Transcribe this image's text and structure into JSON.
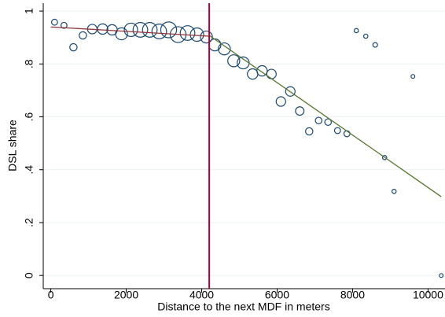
{
  "chart_data": {
    "type": "scatter",
    "x_label": "Distance to the next MDF in meters",
    "y_label": "DSL share",
    "xlim": [
      -200,
      10450
    ],
    "ylim": [
      -0.05,
      1.03
    ],
    "xticks": [
      0,
      2000,
      4000,
      6000,
      8000,
      10000
    ],
    "yticks": [
      0,
      {
        "value": 0.2,
        "label": ".2"
      },
      {
        "value": 0.4,
        "label": ".4"
      },
      {
        "value": 0.6,
        "label": ".6"
      },
      {
        "value": 0.8,
        "label": ".8"
      },
      1
    ],
    "grid": true,
    "series": [
      {
        "color": "#1a476f",
        "x": [
          100,
          350,
          600,
          850,
          1100,
          1375,
          1625,
          1875,
          2125,
          2375,
          2625,
          2875,
          3125,
          3375,
          3625,
          3875,
          4125,
          4350,
          4600,
          4850,
          5100,
          5350,
          5600,
          5850,
          6100,
          6350,
          6600,
          6850,
          7100,
          7350,
          7600,
          7850,
          8100,
          8350,
          8600,
          8850,
          9100,
          9600,
          10350
        ],
        "values": [
          0.958,
          0.946,
          0.863,
          0.908,
          0.932,
          0.932,
          0.929,
          0.914,
          0.929,
          0.929,
          0.929,
          0.923,
          0.929,
          0.911,
          0.917,
          0.911,
          0.902,
          0.872,
          0.857,
          0.812,
          0.804,
          0.762,
          0.774,
          0.762,
          0.658,
          0.696,
          0.622,
          0.545,
          0.586,
          0.58,
          0.548,
          0.536,
          0.926,
          0.905,
          0.872,
          0.446,
          0.318,
          0.753,
          0
        ],
        "sizes": [
          1,
          1,
          1.5,
          1.5,
          2.5,
          3,
          3,
          4,
          5,
          6,
          6,
          6,
          7,
          7,
          6,
          5,
          4,
          4,
          4,
          4,
          4,
          3,
          3,
          2.5,
          2.5,
          2.5,
          2,
          1.5,
          1.2,
          1.2,
          1,
          1,
          0.5,
          0.5,
          0.6,
          0.5,
          0.5,
          0.4,
          0.4
        ]
      }
    ],
    "fit_lines": [
      {
        "color": "#90353b",
        "x": [
          0,
          4200
        ],
        "values": [
          0.94,
          0.905
        ]
      },
      {
        "color": "#55752f",
        "x": [
          4200,
          10350
        ],
        "values": [
          0.908,
          0.298
        ]
      }
    ],
    "vline": {
      "x": 4200,
      "color": "#b0003a"
    }
  }
}
